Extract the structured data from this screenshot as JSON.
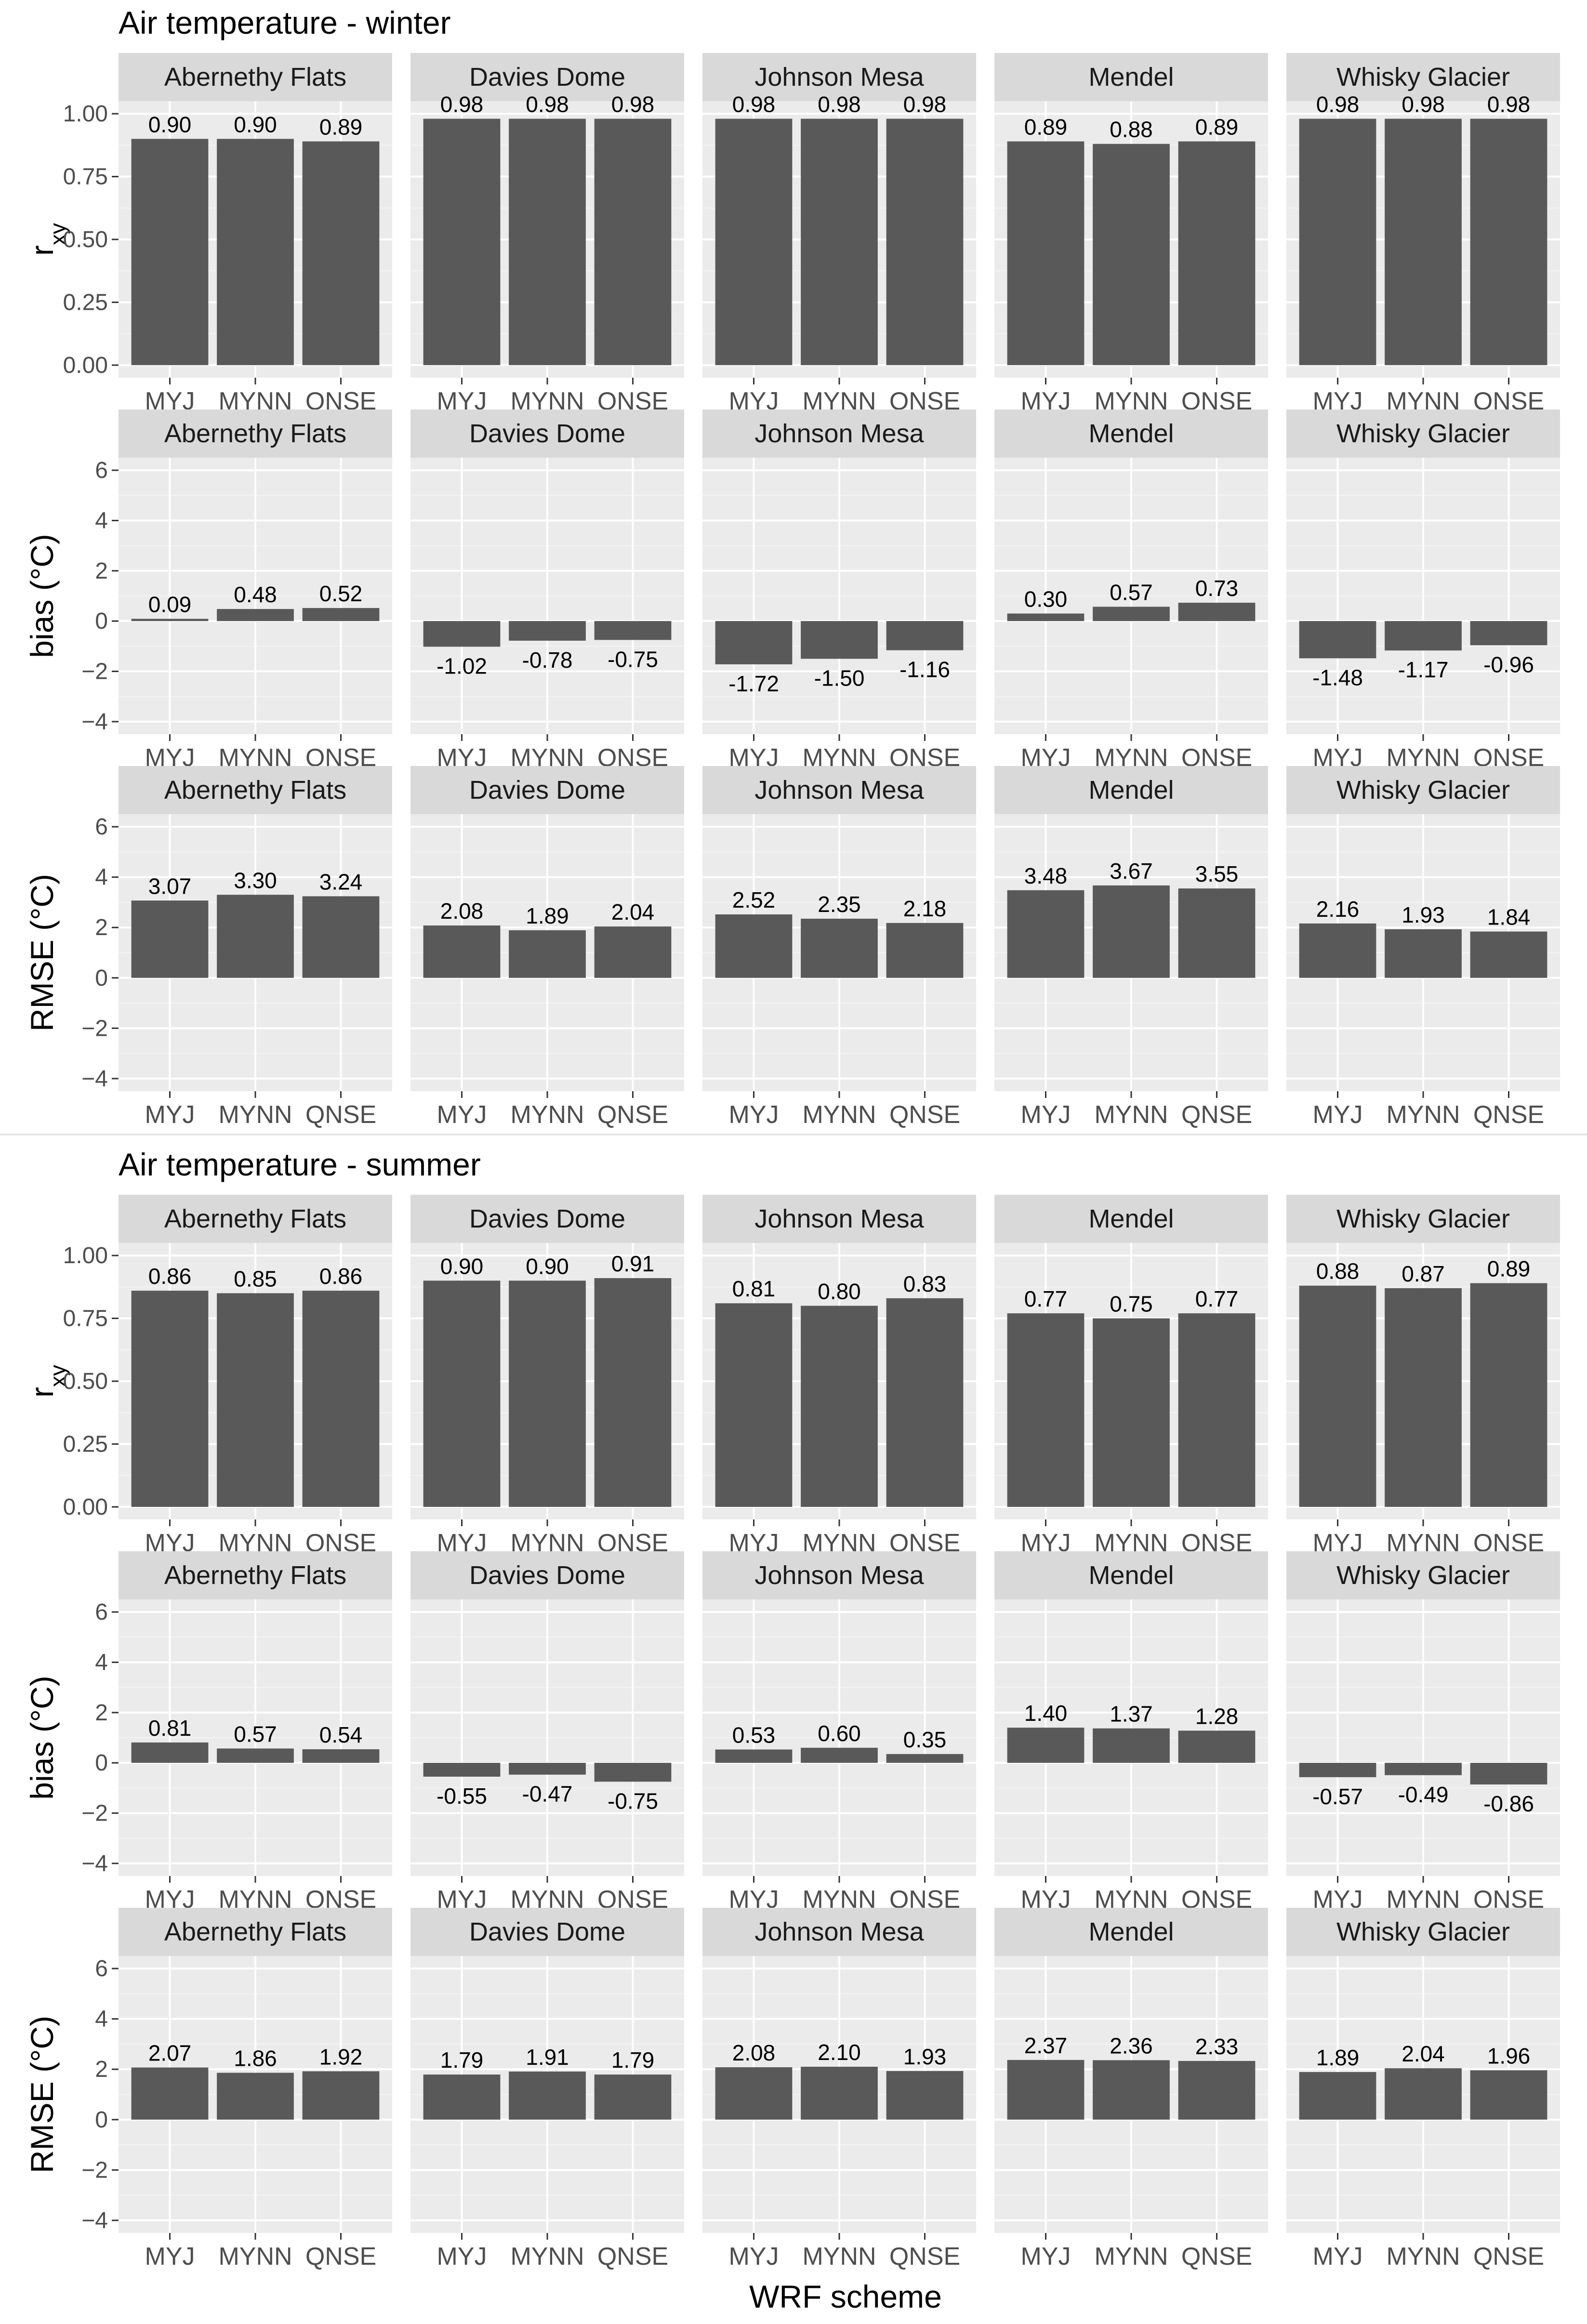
{
  "chart_data": {
    "type": "bar",
    "xlabel": "WRF scheme",
    "sites": [
      "Abernethy Flats",
      "Davies Dome",
      "Johnson Mesa",
      "Mendel",
      "Whisky Glacier"
    ],
    "schemes": [
      "MYJ",
      "MYNN",
      "QNSE"
    ],
    "metrics": [
      {
        "key": "rxy",
        "label_main": "r",
        "label_sub": "xy",
        "ylim": [
          0,
          1.0
        ],
        "ticks": [
          "0.00",
          "0.25",
          "0.50",
          "0.75",
          "1.00"
        ]
      },
      {
        "key": "bias",
        "label_main": "bias (°C)",
        "label_sub": "",
        "ylim": [
          -4,
          6
        ],
        "ticks": [
          "−4",
          "−2",
          "0",
          "2",
          "4",
          "6"
        ]
      },
      {
        "key": "rmse",
        "label_main": "RMSE (°C)",
        "label_sub": "",
        "ylim": [
          -4,
          6
        ],
        "ticks": [
          "−4",
          "−2",
          "0",
          "2",
          "4",
          "6"
        ]
      }
    ],
    "sections": [
      {
        "title": "Air temperature  -  winter",
        "rxy": {
          "Abernethy Flats": [
            "0.90",
            "0.90",
            "0.89"
          ],
          "Davies Dome": [
            "0.98",
            "0.98",
            "0.98"
          ],
          "Johnson Mesa": [
            "0.98",
            "0.98",
            "0.98"
          ],
          "Mendel": [
            "0.89",
            "0.88",
            "0.89"
          ],
          "Whisky Glacier": [
            "0.98",
            "0.98",
            "0.98"
          ]
        },
        "bias": {
          "Abernethy Flats": [
            "0.09",
            "0.48",
            "0.52"
          ],
          "Davies Dome": [
            "-1.02",
            "-0.78",
            "-0.75"
          ],
          "Johnson Mesa": [
            "-1.72",
            "-1.50",
            "-1.16"
          ],
          "Mendel": [
            "0.30",
            "0.57",
            "0.73"
          ],
          "Whisky Glacier": [
            "-1.48",
            "-1.17",
            "-0.96"
          ]
        },
        "rmse": {
          "Abernethy Flats": [
            "3.07",
            "3.30",
            "3.24"
          ],
          "Davies Dome": [
            "2.08",
            "1.89",
            "2.04"
          ],
          "Johnson Mesa": [
            "2.52",
            "2.35",
            "2.18"
          ],
          "Mendel": [
            "3.48",
            "3.67",
            "3.55"
          ],
          "Whisky Glacier": [
            "2.16",
            "1.93",
            "1.84"
          ]
        }
      },
      {
        "title": "Air temperature  -  summer",
        "rxy": {
          "Abernethy Flats": [
            "0.86",
            "0.85",
            "0.86"
          ],
          "Davies Dome": [
            "0.90",
            "0.90",
            "0.91"
          ],
          "Johnson Mesa": [
            "0.81",
            "0.80",
            "0.83"
          ],
          "Mendel": [
            "0.77",
            "0.75",
            "0.77"
          ],
          "Whisky Glacier": [
            "0.88",
            "0.87",
            "0.89"
          ]
        },
        "bias": {
          "Abernethy Flats": [
            "0.81",
            "0.57",
            "0.54"
          ],
          "Davies Dome": [
            "-0.55",
            "-0.47",
            "-0.75"
          ],
          "Johnson Mesa": [
            "0.53",
            "0.60",
            "0.35"
          ],
          "Mendel": [
            "1.40",
            "1.37",
            "1.28"
          ],
          "Whisky Glacier": [
            "-0.57",
            "-0.49",
            "-0.86"
          ]
        },
        "rmse": {
          "Abernethy Flats": [
            "2.07",
            "1.86",
            "1.92"
          ],
          "Davies Dome": [
            "1.79",
            "1.91",
            "1.79"
          ],
          "Johnson Mesa": [
            "2.08",
            "2.10",
            "1.93"
          ],
          "Mendel": [
            "2.37",
            "2.36",
            "2.33"
          ],
          "Whisky Glacier": [
            "1.89",
            "2.04",
            "1.96"
          ]
        }
      }
    ],
    "colors": {
      "bar": "#595959",
      "panel_bg": "#ebebeb",
      "strip_bg": "#d9d9d9",
      "grid_major": "#ffffff",
      "grid_minor": "#f4f4f4"
    }
  }
}
